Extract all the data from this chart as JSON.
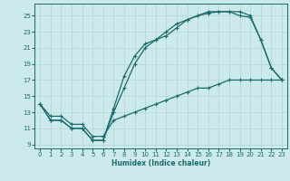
{
  "xlabel": "Humidex (Indice chaleur)",
  "bg_color": "#cce9eb",
  "grid_color": "#b8d8da",
  "line_color": "#1a6b6b",
  "xlim": [
    -0.5,
    23.5
  ],
  "ylim": [
    8.5,
    26.5
  ],
  "xticks": [
    0,
    1,
    2,
    3,
    4,
    5,
    6,
    7,
    8,
    9,
    10,
    11,
    12,
    13,
    14,
    15,
    16,
    17,
    18,
    19,
    20,
    21,
    22,
    23
  ],
  "yticks": [
    9,
    11,
    13,
    15,
    17,
    19,
    21,
    23,
    25
  ],
  "line1_x": [
    0,
    1,
    2,
    3,
    4,
    5,
    6,
    7,
    8,
    9,
    10,
    11,
    12,
    13,
    14,
    15,
    16,
    17,
    18,
    19,
    20,
    21,
    22,
    23
  ],
  "line1_y": [
    14,
    12,
    12,
    11,
    11,
    9.5,
    9.5,
    13.5,
    17.5,
    20,
    21.5,
    22,
    22.5,
    23.5,
    24.5,
    25,
    25.5,
    25.5,
    25.5,
    25.5,
    25,
    22,
    18.5,
    17
  ],
  "line2_x": [
    0,
    1,
    2,
    3,
    4,
    5,
    6,
    7,
    8,
    9,
    10,
    11,
    12,
    13,
    14,
    15,
    16,
    17,
    18,
    19,
    20,
    21,
    22,
    23
  ],
  "line2_y": [
    14,
    12,
    12,
    11,
    11,
    9.5,
    9.5,
    13,
    16,
    19,
    21,
    22,
    23,
    24,
    24.5,
    25,
    25.3,
    25.5,
    25.5,
    25,
    24.8,
    22,
    18.5,
    17
  ],
  "line3_x": [
    0,
    1,
    2,
    3,
    4,
    5,
    6,
    7,
    8,
    9,
    10,
    11,
    12,
    13,
    14,
    15,
    16,
    17,
    18,
    19,
    20,
    21,
    22,
    23
  ],
  "line3_y": [
    14,
    12.5,
    12.5,
    11.5,
    11.5,
    10,
    10,
    12,
    12.5,
    13,
    13.5,
    14,
    14.5,
    15,
    15.5,
    16,
    16,
    16.5,
    17,
    17,
    17,
    17,
    17,
    17
  ]
}
